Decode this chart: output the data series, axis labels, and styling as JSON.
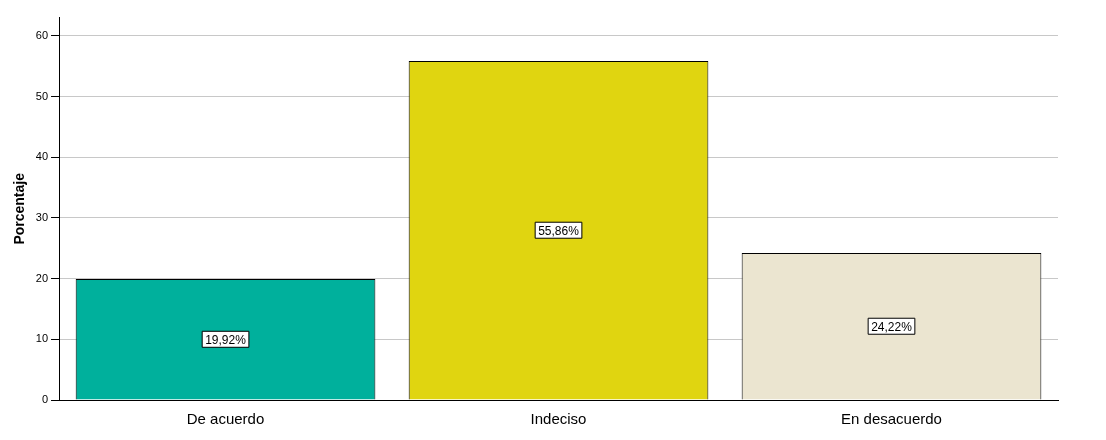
{
  "chart_data": {
    "type": "bar",
    "ylabel": "Porcentaje",
    "categories": [
      "De acuerdo",
      "Indeciso",
      "En desacuerdo"
    ],
    "values": [
      19.92,
      55.86,
      24.22
    ],
    "value_labels": [
      "19,92%",
      "55,86%",
      "24,22%"
    ],
    "colors": [
      "#00b09c",
      "#e0d510",
      "#ebe5d0"
    ],
    "ylim": [
      0,
      63
    ],
    "yticks": [
      0,
      10,
      20,
      30,
      40,
      50,
      60
    ],
    "grid": "y",
    "legend": false
  }
}
